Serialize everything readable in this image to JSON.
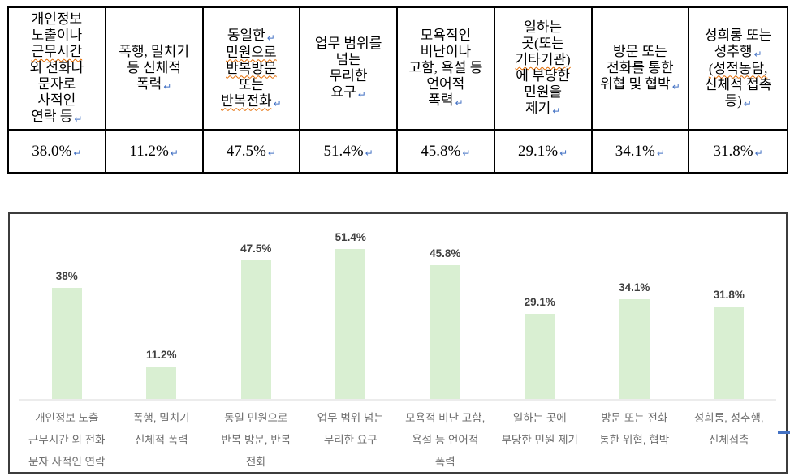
{
  "colors": {
    "bar": "#d9efd2",
    "bar_label": "#404040",
    "category_label": "#6e6e6e",
    "baseline": "#ececec",
    "return_mark": "#4472c4",
    "spellcheck_underline": "#e36a00",
    "table_border": "#000000",
    "chart_border": "#3c3c3c"
  },
  "table": {
    "columns": [
      {
        "header_lines": [
          "개인정보",
          "노출이나",
          "근무시간",
          "외 전화나",
          "문자로",
          "사적인",
          "연락 등↵"
        ],
        "wavy_lines": [
          "근무시간"
        ],
        "value": "38.0%↵"
      },
      {
        "header_lines": [
          "폭행, 밀치기",
          "등 신체적",
          "폭력↵"
        ],
        "wavy_lines": [],
        "value": "11.2%↵"
      },
      {
        "header_lines": [
          "동일한 ↵",
          "민원으로",
          "반복방문",
          "또는",
          "반복전화↵"
        ],
        "wavy_lines": [
          "민원으로",
          "반복방문",
          "반복전화"
        ],
        "value": "47.5%↵"
      },
      {
        "header_lines": [
          "업무 범위를",
          "넘는",
          "무리한",
          "요구↵"
        ],
        "wavy_lines": [],
        "value": "51.4%↵"
      },
      {
        "header_lines": [
          "모욕적인",
          "비난이나",
          "고함, 욕설 등",
          "언어적",
          "폭력↵"
        ],
        "wavy_lines": [],
        "value": "45.8%↵"
      },
      {
        "header_lines": [
          "일하는",
          "곳(또는",
          "기타기관)",
          "에 부당한",
          "민원을",
          "제기↵"
        ],
        "wavy_lines": [
          "기타기관)"
        ],
        "value": "29.1%↵"
      },
      {
        "header_lines": [
          "방문 또는",
          "전화를 통한",
          "위협 및 협박↵"
        ],
        "wavy_lines": [],
        "value": "34.1%↵"
      },
      {
        "header_lines": [
          "성희롱 또는",
          "성추행↵",
          "(성적농담,",
          "신체적 접촉",
          "등)↵"
        ],
        "wavy_lines": [
          "(성적농담,"
        ],
        "value": "31.8%↵"
      }
    ]
  },
  "chart_data": {
    "type": "bar",
    "categories": [
      "개인정보 노출\n근무시간 외 전화\n문자 사적인 연락",
      "폭행, 밀치기\n신체적 폭력",
      "동일 민원으로\n반복 방문, 반복\n전화",
      "업무 범위 넘는\n무리한 요구",
      "모욕적 비난 고함,\n욕설 등 언어적\n폭력",
      "일하는 곳에\n부당한 민원 제기",
      "방문 또는 전화\n통한 위협, 협박",
      "성희롱, 성추행,\n신체접촉"
    ],
    "values": [
      38,
      11.2,
      47.5,
      51.4,
      45.8,
      29.1,
      34.1,
      31.8
    ],
    "value_labels": [
      "38%",
      "11.2%",
      "47.5%",
      "51.4%",
      "45.8%",
      "29.1%",
      "34.1%",
      "31.8%"
    ],
    "title": "",
    "xlabel": "",
    "ylabel": "",
    "ylim": [
      0,
      60
    ],
    "grid": false,
    "legend": false,
    "bar_color": "#d9efd2"
  }
}
